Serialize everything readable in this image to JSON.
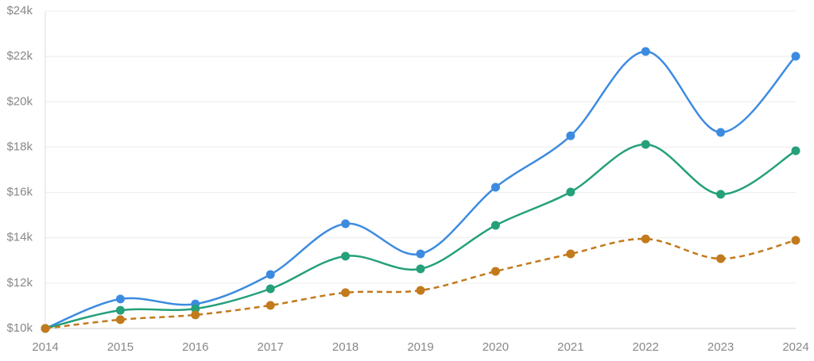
{
  "chart_data": {
    "type": "line",
    "categories": [
      "2014",
      "2015",
      "2016",
      "2017",
      "2018",
      "2019",
      "2020",
      "2021",
      "2022",
      "2023",
      "2024"
    ],
    "series": [
      {
        "color": "#3d8be0",
        "dashed": false,
        "values": [
          10000,
          11300,
          11080,
          12380,
          14620,
          13290,
          16230,
          18500,
          22220,
          18650,
          22010
        ]
      },
      {
        "color": "#24a07a",
        "dashed": false,
        "values": [
          10000,
          10800,
          10870,
          11750,
          13190,
          12630,
          14550,
          16020,
          18120,
          15920,
          17840
        ]
      },
      {
        "color": "#c27a1c",
        "dashed": true,
        "values": [
          10000,
          10390,
          10600,
          11020,
          11580,
          11680,
          12520,
          13290,
          13950,
          13080,
          13890
        ]
      }
    ],
    "ylim": [
      10000,
      24000
    ],
    "yticks": [
      {
        "value": 10000,
        "label": "$10k"
      },
      {
        "value": 12000,
        "label": "$12k"
      },
      {
        "value": 14000,
        "label": "$14k"
      },
      {
        "value": 16000,
        "label": "$16k"
      },
      {
        "value": 18000,
        "label": "$18k"
      },
      {
        "value": 20000,
        "label": "$20k"
      },
      {
        "value": 22000,
        "label": "$22k"
      },
      {
        "value": 24000,
        "label": "$24k"
      }
    ],
    "grid": true
  }
}
